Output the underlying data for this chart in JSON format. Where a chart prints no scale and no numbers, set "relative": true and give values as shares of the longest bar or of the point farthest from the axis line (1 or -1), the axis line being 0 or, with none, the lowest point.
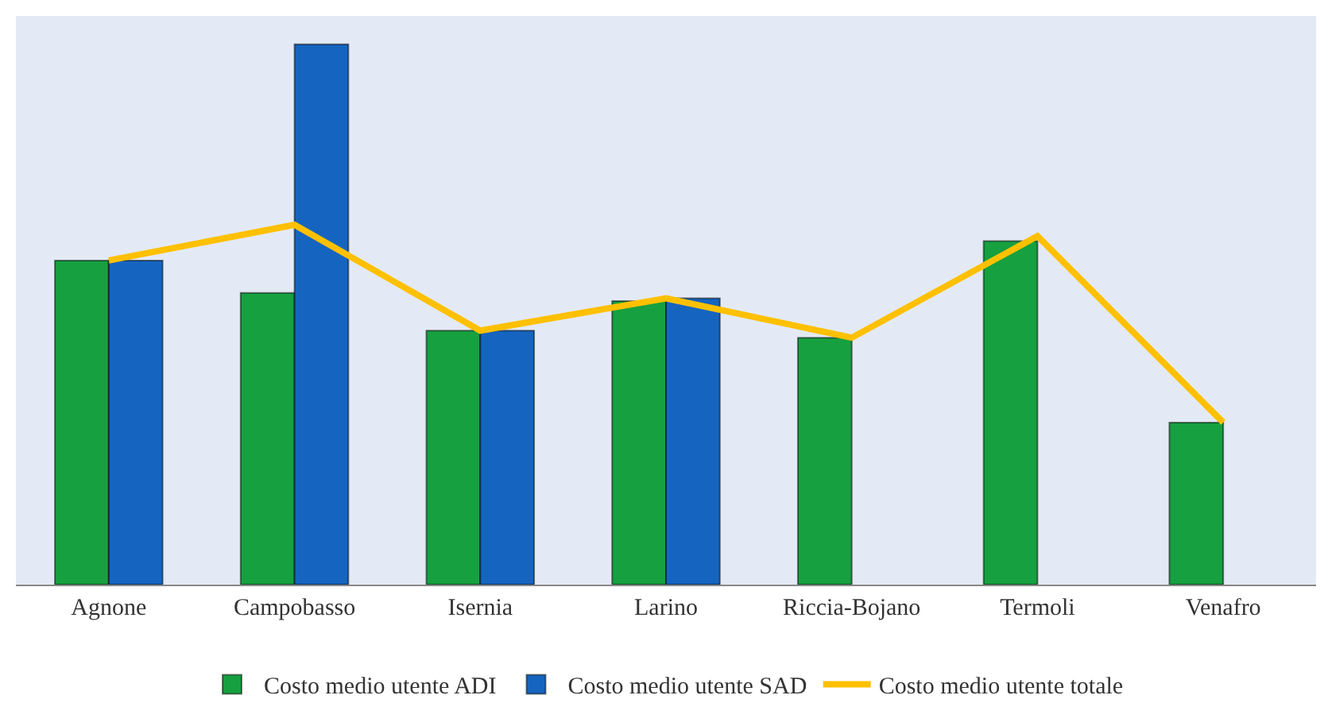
{
  "chart_data": {
    "type": "bar",
    "relative": true,
    "categories": [
      "Agnone",
      "Campobasso",
      "Isernia",
      "Larino",
      "Riccia-Bojano",
      "Termoli",
      "Venafro"
    ],
    "series": [
      {
        "name": "Costo medio utente ADI",
        "color": "#16a040",
        "values": [
          0.6,
          0.54,
          0.47,
          0.525,
          0.457,
          0.636,
          0.3
        ]
      },
      {
        "name": "Costo medio utente SAD",
        "color": "#1565c0",
        "values": [
          0.6,
          1,
          0.47,
          0.53,
          null,
          null,
          null
        ]
      },
      {
        "name": "Costo medio utente totale",
        "type": "line",
        "color": "#ffc000",
        "values": [
          0.6,
          0.666,
          0.47,
          0.53,
          0.457,
          0.645,
          0.3
        ]
      }
    ],
    "legend": "bottom",
    "grid": false,
    "marker": "none"
  }
}
